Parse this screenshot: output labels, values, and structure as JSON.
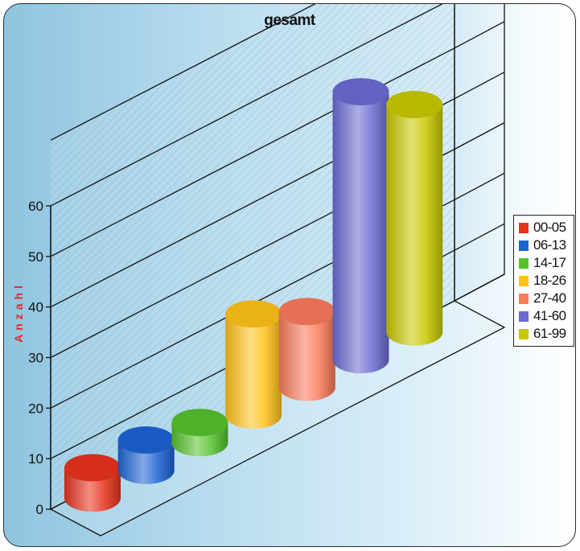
{
  "chart_data": {
    "type": "bar",
    "title": "gesamt",
    "ylabel": "Anzahl",
    "xlabel": "",
    "ylim": [
      0,
      60
    ],
    "yticks": [
      "0",
      "10",
      "20",
      "30",
      "40",
      "50",
      "60"
    ],
    "categories": [
      "00-05",
      "06-13",
      "14-17",
      "18-26",
      "27-40",
      "41-60",
      "61-99"
    ],
    "values": [
      6,
      6,
      4,
      20,
      15,
      53,
      45
    ],
    "colors": [
      "#e8321c",
      "#1c63d4",
      "#55c22c",
      "#ffc21a",
      "#fa7a5a",
      "#6b6bd2",
      "#c8c800"
    ],
    "grid": true,
    "legend": "right"
  }
}
